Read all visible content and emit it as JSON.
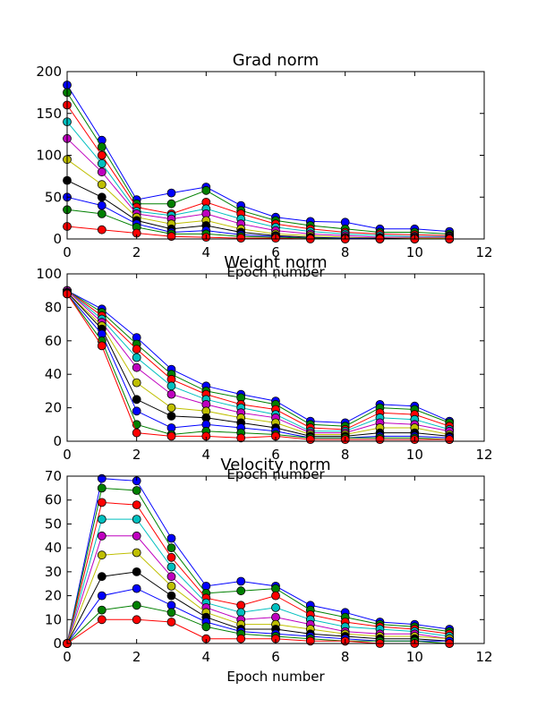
{
  "figure": {
    "colors": [
      "#0000ff",
      "#008000",
      "#ff0000",
      "#00bfbf",
      "#bf00bf",
      "#bfbf00",
      "#000000"
    ]
  },
  "chart_data": [
    {
      "type": "line",
      "title": "Grad norm",
      "xlabel": "Epoch number",
      "ylabel": "",
      "xlim": [
        0,
        12
      ],
      "ylim": [
        0,
        200
      ],
      "xticks": [
        0,
        2,
        4,
        6,
        8,
        10,
        12
      ],
      "yticks": [
        0,
        50,
        100,
        150,
        200
      ],
      "grid": false,
      "x": [
        0,
        1,
        2,
        3,
        4,
        5,
        6,
        7,
        8,
        9,
        10,
        11
      ],
      "series": [
        {
          "values": [
            184,
            118,
            47,
            55,
            62,
            40,
            26,
            21,
            20,
            12,
            12,
            9
          ]
        },
        {
          "values": [
            175,
            110,
            42,
            42,
            58,
            34,
            22,
            16,
            12,
            8,
            8,
            6
          ]
        },
        {
          "values": [
            160,
            100,
            38,
            30,
            44,
            30,
            18,
            12,
            8,
            6,
            5,
            4
          ]
        },
        {
          "values": [
            140,
            90,
            33,
            28,
            36,
            24,
            14,
            9,
            6,
            4,
            3,
            3
          ]
        },
        {
          "values": [
            120,
            80,
            30,
            24,
            30,
            18,
            10,
            6,
            4,
            2,
            2,
            2
          ]
        },
        {
          "values": [
            95,
            65,
            26,
            18,
            22,
            12,
            6,
            4,
            2,
            1,
            1,
            1
          ]
        },
        {
          "values": [
            70,
            50,
            22,
            12,
            16,
            8,
            4,
            2,
            1,
            1,
            0,
            0
          ]
        },
        {
          "values": [
            50,
            40,
            18,
            8,
            10,
            5,
            3,
            1,
            1,
            0,
            0,
            0
          ]
        },
        {
          "values": [
            35,
            30,
            14,
            6,
            6,
            3,
            2,
            1,
            0,
            0,
            0,
            0
          ]
        },
        {
          "values": [
            15,
            11,
            7,
            3,
            2,
            1,
            1,
            0,
            0,
            0,
            0,
            0
          ]
        }
      ]
    },
    {
      "type": "line",
      "title": "Weight norm",
      "xlabel": "Epoch number",
      "ylabel": "",
      "xlim": [
        0,
        12
      ],
      "ylim": [
        0,
        100
      ],
      "xticks": [
        0,
        2,
        4,
        6,
        8,
        10,
        12
      ],
      "yticks": [
        0,
        20,
        40,
        60,
        80,
        100
      ],
      "grid": false,
      "x": [
        0,
        1,
        2,
        3,
        4,
        5,
        6,
        7,
        8,
        9,
        10,
        11
      ],
      "series": [
        {
          "values": [
            90,
            79,
            62,
            43,
            33,
            28,
            24,
            12,
            11,
            22,
            21,
            12
          ]
        },
        {
          "values": [
            90,
            77,
            58,
            40,
            30,
            26,
            22,
            10,
            9,
            20,
            19,
            11
          ]
        },
        {
          "values": [
            90,
            75,
            55,
            37,
            28,
            22,
            19,
            8,
            7,
            17,
            16,
            9
          ]
        },
        {
          "values": [
            90,
            73,
            50,
            33,
            25,
            20,
            16,
            6,
            6,
            14,
            13,
            7
          ]
        },
        {
          "values": [
            90,
            71,
            44,
            28,
            22,
            17,
            14,
            5,
            5,
            11,
            10,
            6
          ]
        },
        {
          "values": [
            89,
            69,
            35,
            20,
            18,
            14,
            11,
            4,
            4,
            8,
            8,
            4
          ]
        },
        {
          "values": [
            89,
            67,
            25,
            15,
            14,
            11,
            8,
            3,
            3,
            5,
            5,
            3
          ]
        },
        {
          "values": [
            88,
            64,
            18,
            8,
            10,
            8,
            6,
            2,
            2,
            3,
            3,
            2
          ]
        },
        {
          "values": [
            88,
            60,
            10,
            4,
            6,
            5,
            4,
            2,
            2,
            2,
            2,
            1
          ]
        },
        {
          "values": [
            88,
            57,
            5,
            3,
            3,
            2,
            3,
            1,
            1,
            1,
            1,
            1
          ]
        }
      ]
    },
    {
      "type": "line",
      "title": "Velocity norm",
      "xlabel": "Epoch number",
      "ylabel": "",
      "xlim": [
        0,
        12
      ],
      "ylim": [
        0,
        70
      ],
      "xticks": [
        0,
        2,
        4,
        6,
        8,
        10,
        12
      ],
      "yticks": [
        0,
        10,
        20,
        30,
        40,
        50,
        60,
        70
      ],
      "grid": false,
      "x": [
        0,
        1,
        2,
        3,
        4,
        5,
        6,
        7,
        8,
        9,
        10,
        11
      ],
      "series": [
        {
          "values": [
            0,
            69,
            68,
            44,
            24,
            26,
            24,
            16,
            13,
            9,
            8,
            6
          ]
        },
        {
          "values": [
            0,
            65,
            64,
            40,
            21,
            22,
            23,
            14,
            11,
            8,
            7,
            5
          ]
        },
        {
          "values": [
            0,
            59,
            58,
            36,
            19,
            16,
            20,
            12,
            9,
            7,
            6,
            4
          ]
        },
        {
          "values": [
            0,
            52,
            52,
            32,
            17,
            13,
            15,
            10,
            7,
            6,
            5,
            3
          ]
        },
        {
          "values": [
            0,
            45,
            45,
            28,
            15,
            10,
            11,
            8,
            5,
            4,
            4,
            2
          ]
        },
        {
          "values": [
            0,
            37,
            38,
            24,
            13,
            8,
            8,
            6,
            4,
            3,
            3,
            2
          ]
        },
        {
          "values": [
            0,
            28,
            30,
            20,
            11,
            6,
            6,
            4,
            3,
            2,
            2,
            1
          ]
        },
        {
          "values": [
            0,
            20,
            23,
            16,
            9,
            5,
            4,
            3,
            2,
            1,
            1,
            1
          ]
        },
        {
          "values": [
            0,
            14,
            16,
            13,
            7,
            4,
            3,
            2,
            1,
            1,
            1,
            0
          ]
        },
        {
          "values": [
            0,
            10,
            10,
            9,
            2,
            2,
            2,
            1,
            1,
            0,
            0,
            0
          ]
        }
      ]
    }
  ]
}
